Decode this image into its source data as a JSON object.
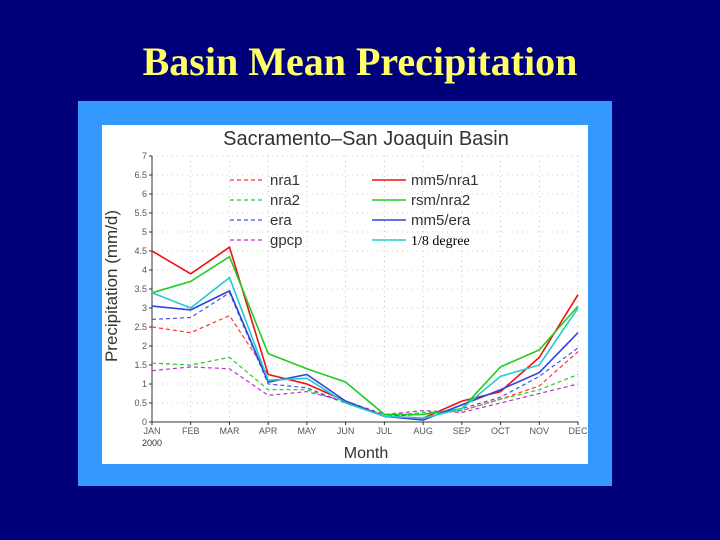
{
  "slide_title": "Basin Mean Precipitation",
  "chart_data": {
    "type": "line",
    "title": "Sacramento–San Joaquin Basin",
    "xlabel": "Month",
    "ylabel": "Precipitation (mm/d)",
    "categories": [
      "JAN",
      "FEB",
      "MAR",
      "APR",
      "MAY",
      "JUN",
      "JUL",
      "AUG",
      "SEP",
      "OCT",
      "NOV",
      "DEC"
    ],
    "year_label": "2000",
    "ylim": [
      0,
      7
    ],
    "yticks": [
      "0",
      "0.5",
      "1",
      "1.5",
      "2",
      "2.5",
      "3",
      "3.5",
      "4",
      "4.5",
      "5",
      "5.5",
      "6",
      "6.5",
      "7"
    ],
    "grid": true,
    "legend_placement": "top",
    "series": [
      {
        "name": "nra1",
        "color": "#ff3333",
        "dashed": true,
        "values": [
          2.5,
          2.35,
          2.8,
          1.25,
          1.0,
          0.55,
          0.15,
          0.2,
          0.3,
          0.6,
          0.95,
          1.85
        ]
      },
      {
        "name": "nra2",
        "color": "#22cc22",
        "dashed": true,
        "values": [
          1.55,
          1.5,
          1.7,
          0.85,
          0.85,
          0.5,
          0.15,
          0.25,
          0.3,
          0.6,
          0.85,
          1.25
        ]
      },
      {
        "name": "era",
        "color": "#4455ee",
        "dashed": true,
        "values": [
          2.7,
          2.75,
          3.4,
          1.0,
          0.9,
          0.5,
          0.15,
          0.2,
          0.35,
          0.65,
          1.2,
          1.95
        ]
      },
      {
        "name": "gpcp",
        "color": "#bb33cc",
        "dashed": true,
        "values": [
          1.35,
          1.45,
          1.4,
          0.7,
          0.8,
          0.55,
          0.2,
          0.3,
          0.25,
          0.5,
          0.75,
          1.0
        ]
      },
      {
        "name": "mm5/nra1",
        "color": "#ee1111",
        "dashed": false,
        "values": [
          4.5,
          3.9,
          4.6,
          1.25,
          1.0,
          0.55,
          0.15,
          0.1,
          0.55,
          0.8,
          1.7,
          3.35
        ]
      },
      {
        "name": "rsm/nra2",
        "color": "#22cc22",
        "dashed": false,
        "values": [
          3.4,
          3.7,
          4.35,
          1.8,
          1.4,
          1.05,
          0.2,
          0.2,
          0.35,
          1.45,
          1.9,
          3.05
        ]
      },
      {
        "name": "mm5/era",
        "color": "#3344dd",
        "dashed": false,
        "values": [
          3.05,
          2.95,
          3.45,
          1.05,
          1.25,
          0.55,
          0.15,
          0.05,
          0.45,
          0.85,
          1.3,
          2.35
        ]
      },
      {
        "name": "1/8 degree",
        "color": "#22cccc",
        "dashed": false,
        "values": [
          3.4,
          3.0,
          3.8,
          1.1,
          1.15,
          0.5,
          0.15,
          0.1,
          0.35,
          1.2,
          1.5,
          3.0
        ]
      }
    ]
  }
}
